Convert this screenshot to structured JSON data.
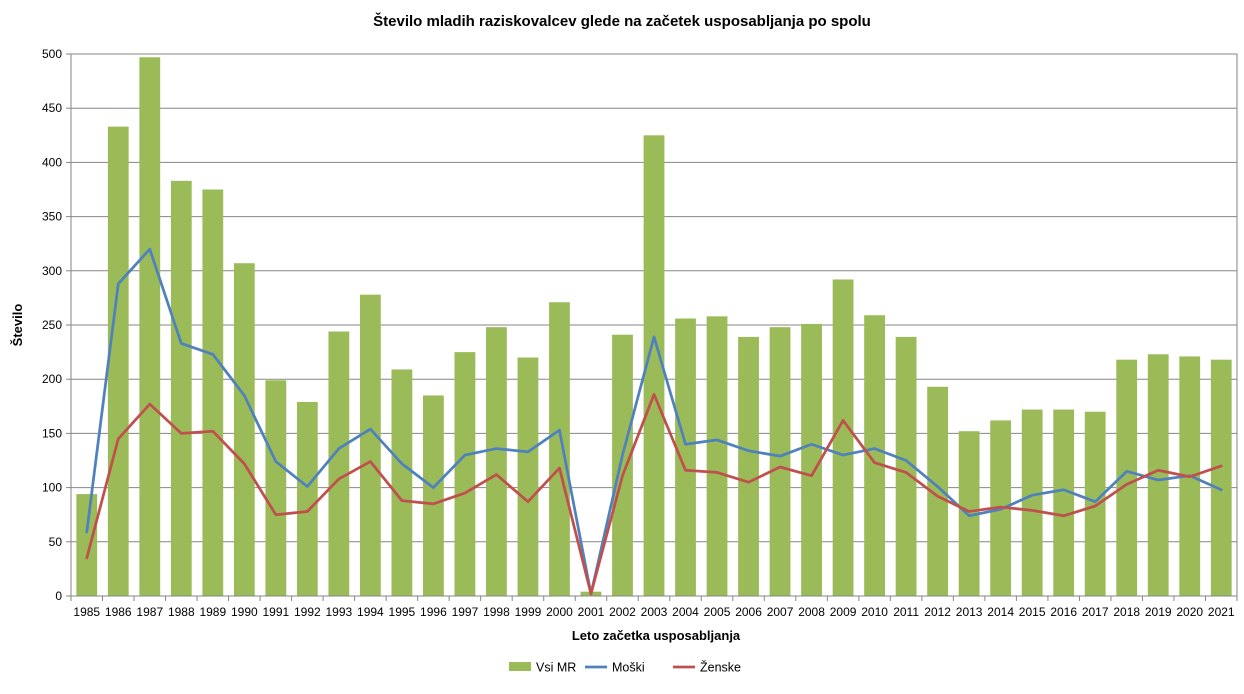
{
  "chart_data": {
    "type": "bar",
    "title": "Število mladih raziskovalcev glede na začetek usposabljanja po spolu",
    "xlabel": "Leto začetka usposabljanja",
    "ylabel": "Število",
    "ylim": [
      0,
      500
    ],
    "ytick_step": 50,
    "grid": true,
    "legend_position": "bottom",
    "categories": [
      "1985",
      "1986",
      "1987",
      "1988",
      "1989",
      "1990",
      "1991",
      "1992",
      "1993",
      "1994",
      "1995",
      "1996",
      "1997",
      "1998",
      "1999",
      "2000",
      "2001",
      "2002",
      "2003",
      "2004",
      "2005",
      "2006",
      "2007",
      "2008",
      "2009",
      "2010",
      "2011",
      "2012",
      "2013",
      "2014",
      "2015",
      "2016",
      "2017",
      "2018",
      "2019",
      "2020",
      "2021"
    ],
    "series": [
      {
        "name": "Vsi MR",
        "type": "bar",
        "color": "#9BBB59",
        "values": [
          94,
          433,
          497,
          383,
          375,
          307,
          199,
          179,
          244,
          278,
          209,
          185,
          225,
          248,
          220,
          271,
          4,
          241,
          425,
          256,
          258,
          239,
          248,
          251,
          292,
          259,
          239,
          193,
          152,
          162,
          172,
          172,
          170,
          218,
          223,
          221,
          218
        ]
      },
      {
        "name": "Moški",
        "type": "line",
        "color": "#4F81BD",
        "values": [
          59,
          288,
          320,
          233,
          223,
          185,
          124,
          101,
          136,
          154,
          122,
          100,
          130,
          136,
          133,
          153,
          2,
          130,
          239,
          140,
          144,
          134,
          129,
          140,
          130,
          136,
          125,
          101,
          74,
          80,
          93,
          98,
          87,
          115,
          107,
          111,
          98
        ]
      },
      {
        "name": "Ženske",
        "type": "line",
        "color": "#C0504D",
        "values": [
          35,
          145,
          177,
          150,
          152,
          122,
          75,
          78,
          108,
          124,
          88,
          85,
          95,
          112,
          87,
          118,
          2,
          111,
          186,
          116,
          114,
          105,
          119,
          111,
          162,
          123,
          114,
          92,
          78,
          82,
          79,
          74,
          83,
          103,
          116,
          110,
          120
        ]
      }
    ]
  }
}
